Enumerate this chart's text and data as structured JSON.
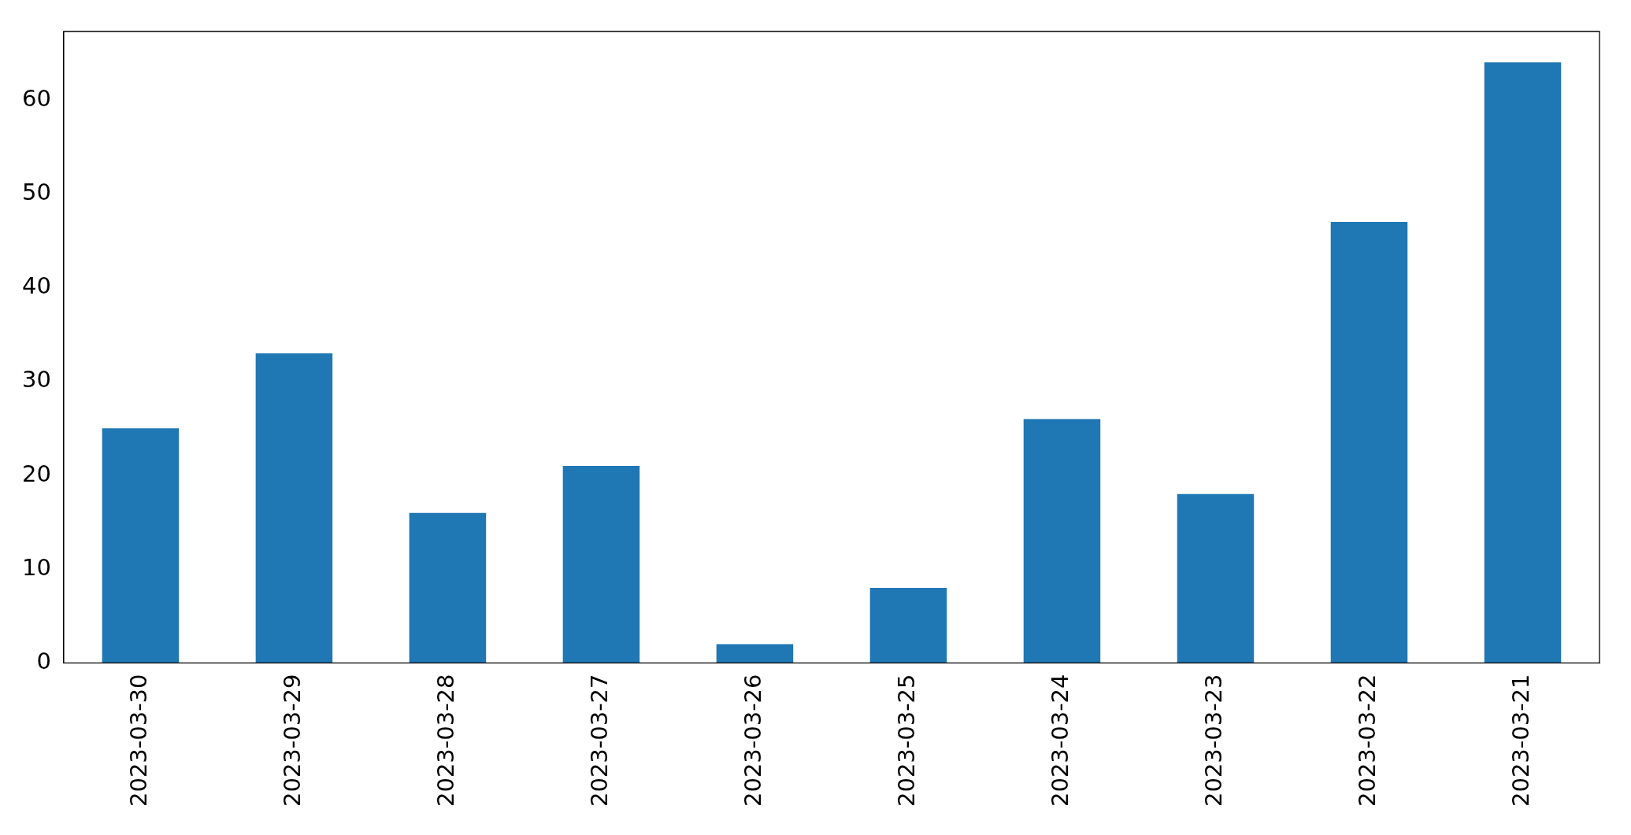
{
  "chart_data": {
    "type": "bar",
    "categories": [
      "2023-03-30",
      "2023-03-29",
      "2023-03-28",
      "2023-03-27",
      "2023-03-26",
      "2023-03-25",
      "2023-03-24",
      "2023-03-23",
      "2023-03-22",
      "2023-03-21"
    ],
    "values": [
      25,
      33,
      16,
      21,
      2,
      8,
      26,
      18,
      47,
      64
    ],
    "color": "#1f77b4",
    "ylim": [
      0,
      67.3
    ],
    "yticks": [
      0,
      10,
      20,
      30,
      40,
      50,
      60
    ],
    "grid": false,
    "legend": false
  }
}
